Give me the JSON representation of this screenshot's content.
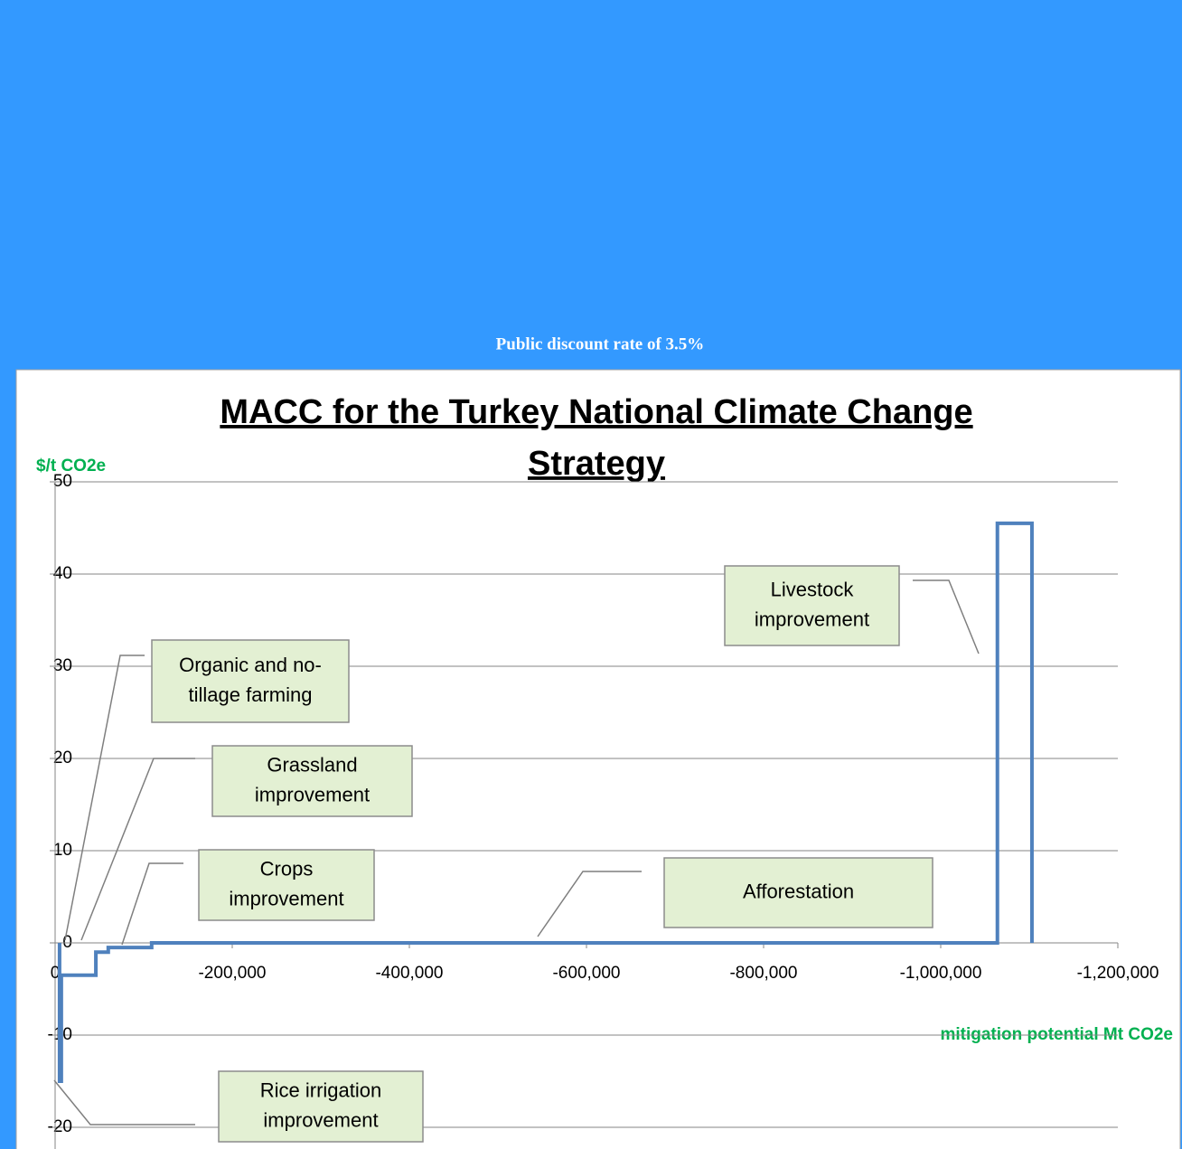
{
  "caption": "Public discount rate of 3.5%",
  "chart_data": {
    "type": "line",
    "title_lines": [
      "MACC for the Turkey National Climate Change",
      "Strategy"
    ],
    "ylabel": "$/t CO2e",
    "xlabel": "mitigation potential Mt CO2e",
    "xlim": [
      0,
      -1200000
    ],
    "ylim": [
      -20,
      50
    ],
    "xticks": [
      0,
      {
        "value": -200000,
        "label": "-200,000"
      },
      {
        "value": -400000,
        "label": "-400,000"
      },
      {
        "value": -600000,
        "label": "-600,000"
      },
      {
        "value": -800000,
        "label": "-800,000"
      },
      {
        "value": -1000000,
        "label": "-1,000,000"
      },
      {
        "value": -1200000,
        "label": "-1,200,000"
      }
    ],
    "yticks": [
      -20,
      -10,
      0,
      10,
      20,
      30,
      40,
      50
    ],
    "grid": true,
    "series": [
      {
        "color": "#4f81bd",
        "x": [
          -5000,
          -5000,
          -7000,
          -7000,
          -46000,
          -46000,
          -60000,
          -60000,
          -109000,
          -109000,
          -1064000,
          -1064000,
          -1103000,
          -1103000
        ],
        "values": [
          0,
          -15,
          -15,
          -3.5,
          -3.5,
          -1,
          -1,
          -0.5,
          -0.5,
          0,
          0,
          45.5,
          45.5,
          0
        ]
      }
    ],
    "annotations": [
      {
        "lines": [
          "Livestock",
          "improvement"
        ]
      },
      {
        "lines": [
          "Organic and no-",
          "tillage farming"
        ]
      },
      {
        "lines": [
          "Grassland",
          "improvement"
        ]
      },
      {
        "lines": [
          "Crops",
          "improvement"
        ]
      },
      {
        "lines": [
          "Afforestation"
        ]
      },
      {
        "lines": [
          "Rice irrigation",
          "improvement"
        ]
      }
    ]
  }
}
